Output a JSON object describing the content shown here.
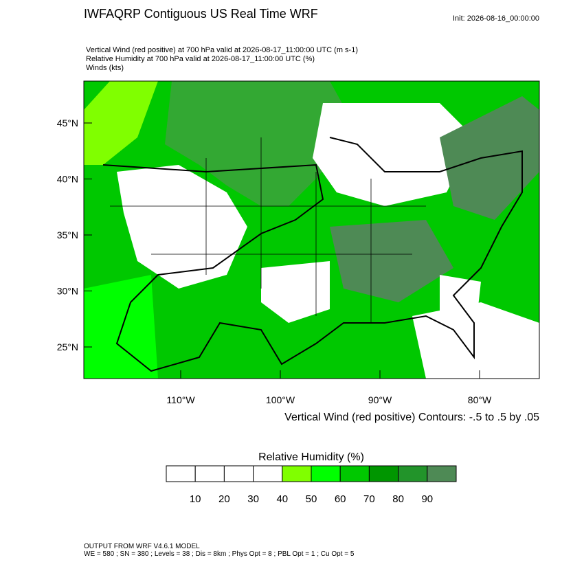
{
  "header": {
    "title": "IWFAQRP Contiguous US Real Time WRF",
    "init": "Init: 2026-08-16_00:00:00",
    "lines": [
      "Vertical Wind (red positive) at 700 hPa valid at 2026-08-17_11:00:00 UTC   (m s-1)",
      "Relative Humidity at 700 hPa valid at 2026-08-17_11:00:00 UTC   (%)",
      "Winds   (kts)"
    ]
  },
  "map": {
    "lat_labels": [
      "45°N",
      "40°N",
      "35°N",
      "30°N",
      "25°N"
    ],
    "lon_labels": [
      "110°W",
      "100°W",
      "90°W",
      "80°W"
    ],
    "contour_note": "Vertical Wind (red positive) Contours: -.5 to .5 by .05"
  },
  "colorbar": {
    "title": "Relative Humidity  (%)",
    "colors": [
      "#ffffff",
      "#ffffff",
      "#ffffff",
      "#ffffff",
      "#80ff00",
      "#00ff00",
      "#00c800",
      "#009600",
      "#22942a",
      "#4e8a55"
    ],
    "levels": [
      10,
      20,
      30,
      40,
      50,
      60,
      70,
      80,
      90
    ]
  },
  "footer": [
    "OUTPUT FROM WRF V4.6.1 MODEL",
    "WE = 580 ; SN = 380 ; Levels = 38 ; Dis = 8km ; Phys Opt = 8 ; PBL Opt = 1 ; Cu Opt = 5"
  ]
}
